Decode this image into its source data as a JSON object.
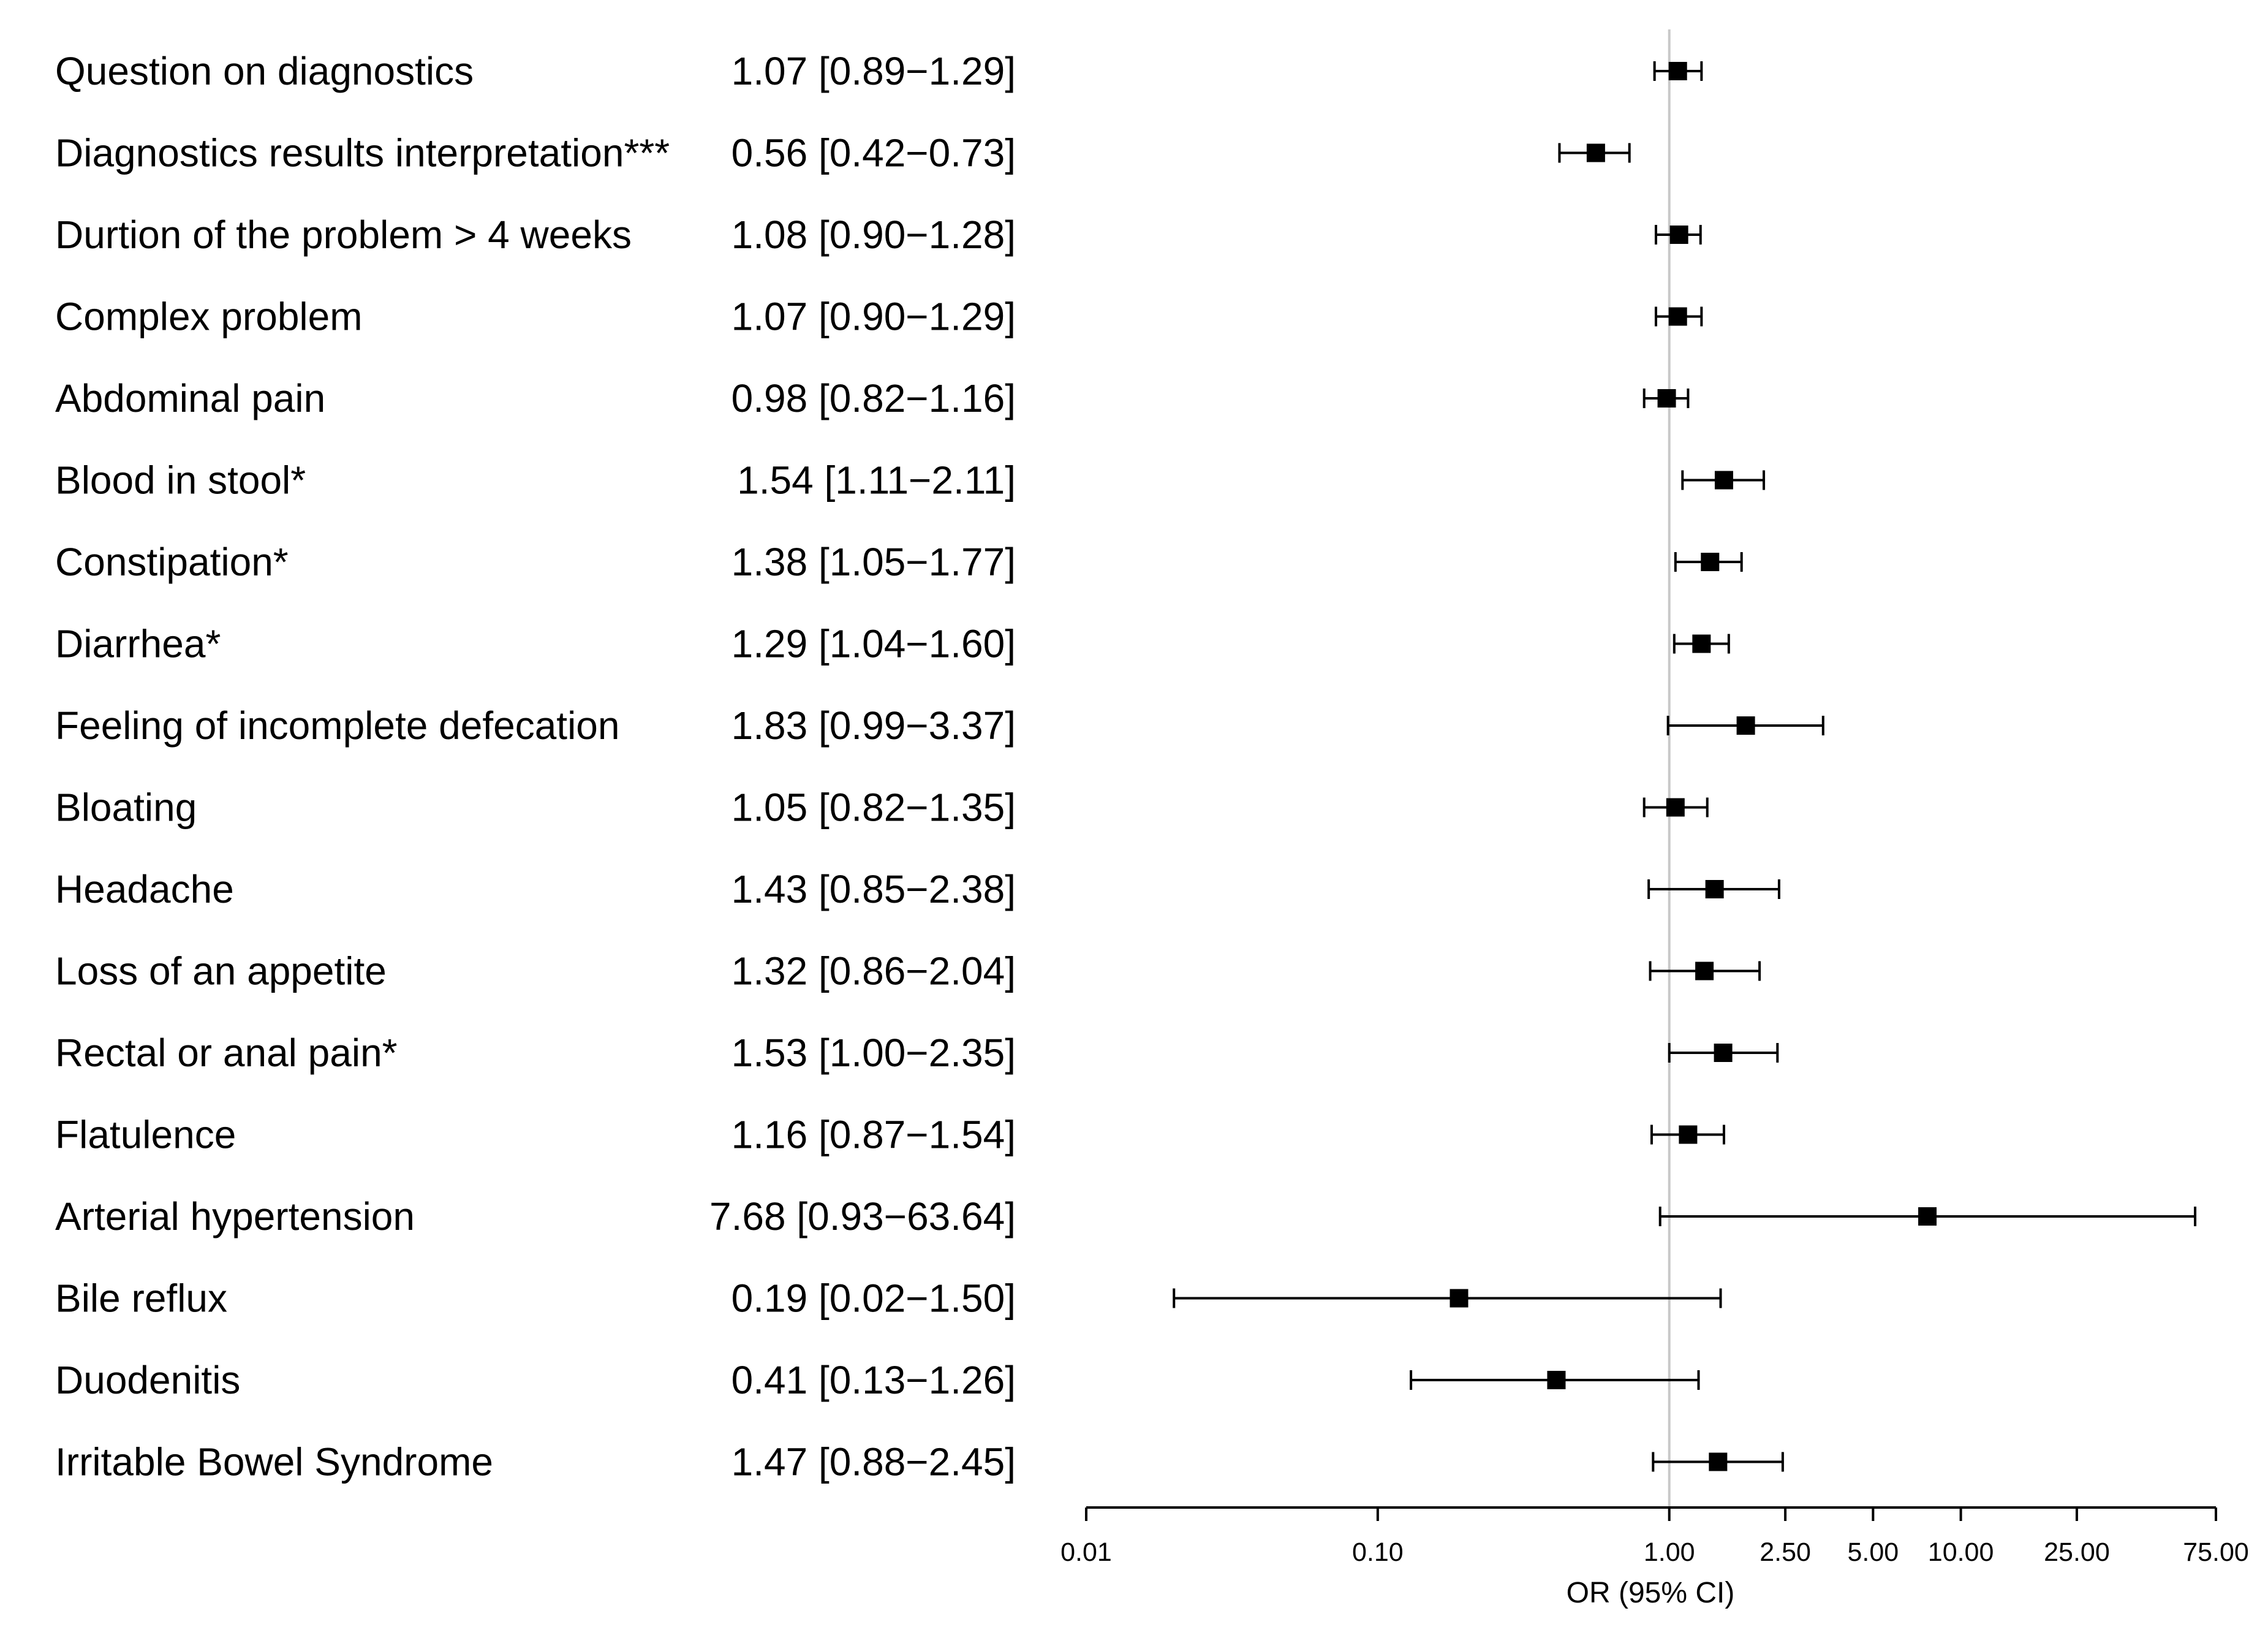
{
  "chart_data": {
    "type": "forest",
    "scale": "log",
    "xlabel": "OR (95% CI)",
    "reference_value": 1.0,
    "xlim": [
      0.01,
      75.0
    ],
    "xticks": [
      0.01,
      0.1,
      1.0,
      2.5,
      5.0,
      10.0,
      25.0,
      75.0
    ],
    "xtick_labels": [
      "0.01",
      "0.10",
      "1.00",
      "2.50",
      "5.00",
      "10.00",
      "25.00",
      "75.00"
    ],
    "rows": [
      {
        "label": "Question on diagnostics",
        "ci_text": "1.07 [0.89−1.29]",
        "or": 1.07,
        "lo": 0.89,
        "hi": 1.29
      },
      {
        "label": "Diagnostics results interpretation***",
        "ci_text": "0.56 [0.42−0.73]",
        "or": 0.56,
        "lo": 0.42,
        "hi": 0.73
      },
      {
        "label": "Durtion of the problem > 4 weeks",
        "ci_text": "1.08 [0.90−1.28]",
        "or": 1.08,
        "lo": 0.9,
        "hi": 1.28
      },
      {
        "label": "Complex problem",
        "ci_text": "1.07 [0.90−1.29]",
        "or": 1.07,
        "lo": 0.9,
        "hi": 1.29
      },
      {
        "label": "Abdominal pain",
        "ci_text": "0.98 [0.82−1.16]",
        "or": 0.98,
        "lo": 0.82,
        "hi": 1.16
      },
      {
        "label": "Blood in stool*",
        "ci_text": "1.54 [1.11−2.11]",
        "or": 1.54,
        "lo": 1.11,
        "hi": 2.11
      },
      {
        "label": "Constipation*",
        "ci_text": "1.38 [1.05−1.77]",
        "or": 1.38,
        "lo": 1.05,
        "hi": 1.77
      },
      {
        "label": "Diarrhea*",
        "ci_text": "1.29 [1.04−1.60]",
        "or": 1.29,
        "lo": 1.04,
        "hi": 1.6
      },
      {
        "label": "Feeling of incomplete defecation",
        "ci_text": "1.83 [0.99−3.37]",
        "or": 1.83,
        "lo": 0.99,
        "hi": 3.37
      },
      {
        "label": "Bloating",
        "ci_text": "1.05 [0.82−1.35]",
        "or": 1.05,
        "lo": 0.82,
        "hi": 1.35
      },
      {
        "label": "Headache",
        "ci_text": "1.43 [0.85−2.38]",
        "or": 1.43,
        "lo": 0.85,
        "hi": 2.38
      },
      {
        "label": "Loss of an appetite",
        "ci_text": "1.32 [0.86−2.04]",
        "or": 1.32,
        "lo": 0.86,
        "hi": 2.04
      },
      {
        "label": "Rectal or anal pain*",
        "ci_text": "1.53 [1.00−2.35]",
        "or": 1.53,
        "lo": 1.0,
        "hi": 2.35
      },
      {
        "label": "Flatulence",
        "ci_text": "1.16 [0.87−1.54]",
        "or": 1.16,
        "lo": 0.87,
        "hi": 1.54
      },
      {
        "label": "Arterial hypertension",
        "ci_text": "7.68 [0.93−63.64]",
        "or": 7.68,
        "lo": 0.93,
        "hi": 63.64
      },
      {
        "label": "Bile reflux",
        "ci_text": "0.19 [0.02−1.50]",
        "or": 0.19,
        "lo": 0.02,
        "hi": 1.5
      },
      {
        "label": "Duodenitis",
        "ci_text": "0.41 [0.13−1.26]",
        "or": 0.41,
        "lo": 0.13,
        "hi": 1.26
      },
      {
        "label": "Irritable Bowel Syndrome",
        "ci_text": "1.47 [0.88−2.45]",
        "or": 1.47,
        "lo": 0.88,
        "hi": 2.45
      }
    ]
  }
}
